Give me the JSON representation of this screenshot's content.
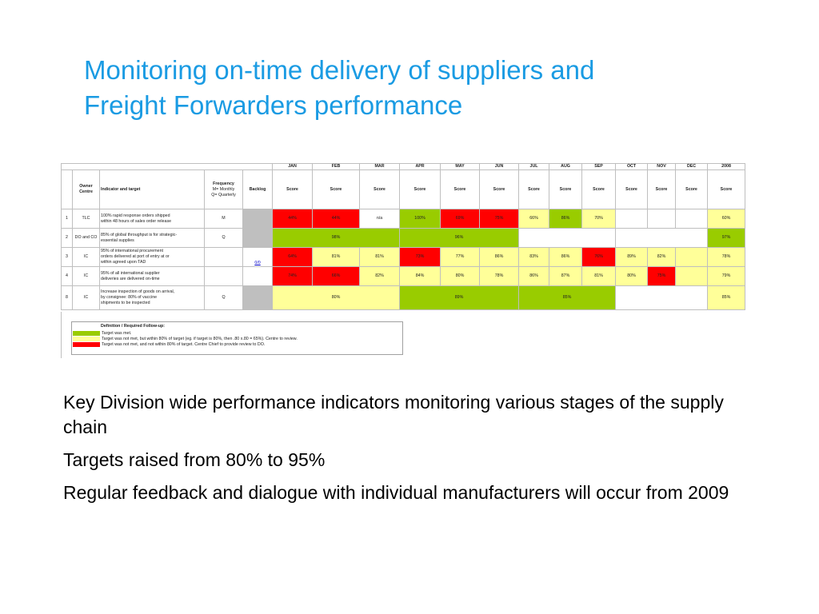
{
  "title": {
    "line1": "Monitoring on-time delivery of suppliers and",
    "line2": "Freight Forwarders performance"
  },
  "table": {
    "months": [
      "JAN",
      "FEB",
      "MAR",
      "APR",
      "MAY",
      "JUN",
      "JUL",
      "AUG",
      "SEP",
      "OCT",
      "NOV",
      "DEC",
      "2008"
    ],
    "headers": {
      "owner": "Owner Centre",
      "indicator": "Indicator and target",
      "frequency_line1": "Frequency",
      "frequency_line2": "M= Monthly",
      "frequency_line3": "Q= Quarterly",
      "backlog": "Backlog",
      "score": "Score"
    },
    "rows": [
      {
        "num": "1",
        "owner": "TLC",
        "indicator_line1": "100% rapid response orders shipped",
        "indicator_line2": "within 48 hours of sales order release",
        "indicator_line3": "",
        "freq": "M",
        "backlog": "",
        "cells": [
          {
            "text": "44%",
            "color": "red"
          },
          {
            "text": "44%",
            "color": "red"
          },
          {
            "text": "n/a",
            "color": "white"
          },
          {
            "text": "100%",
            "color": "green"
          },
          {
            "text": "69%",
            "color": "red"
          },
          {
            "text": "75%",
            "color": "red"
          },
          {
            "text": "66%",
            "color": "yellow"
          },
          {
            "text": "86%",
            "color": "green"
          },
          {
            "text": "70%",
            "color": "yellow"
          },
          {
            "text": "",
            "color": "white"
          },
          {
            "text": "",
            "color": "white"
          },
          {
            "text": "",
            "color": "white"
          }
        ],
        "total": {
          "text": "60%",
          "color": "yellow"
        }
      },
      {
        "num": "2",
        "owner": "DO and CO",
        "indicator_line1": "85% of global throughput is for strategic-",
        "indicator_line2": "essential supplies",
        "indicator_line3": "",
        "freq": "Q",
        "backlog": "",
        "spans": [
          {
            "text": "98%",
            "span": 3,
            "color": "green"
          },
          {
            "text": "96%",
            "span": 3,
            "color": "green"
          },
          {
            "text": "",
            "span": 3,
            "color": "white"
          },
          {
            "text": "",
            "span": 3,
            "color": "white"
          }
        ],
        "total": {
          "text": "97%",
          "color": "green"
        }
      },
      {
        "num": "3",
        "owner": "IC",
        "indicator_line1": "95% of international procurement",
        "indicator_line2": "orders delivered at port of entry at or",
        "indicator_line3": "within agreed upon TAD",
        "freq": "",
        "backlog": "0/0",
        "cells": [
          {
            "text": "64%",
            "color": "red"
          },
          {
            "text": "81%",
            "color": "yellow"
          },
          {
            "text": "81%",
            "color": "yellow"
          },
          {
            "text": "73%",
            "color": "red"
          },
          {
            "text": "77%",
            "color": "yellow"
          },
          {
            "text": "86%",
            "color": "yellow"
          },
          {
            "text": "83%",
            "color": "yellow"
          },
          {
            "text": "86%",
            "color": "yellow"
          },
          {
            "text": "76%",
            "color": "red"
          },
          {
            "text": "89%",
            "color": "yellow"
          },
          {
            "text": "82%",
            "color": "yellow"
          },
          {
            "text": "",
            "color": "yellow"
          }
        ],
        "total": {
          "text": "78%",
          "color": "yellow"
        }
      },
      {
        "num": "4",
        "owner": "IC",
        "indicator_line1": "95% of all international supplier",
        "indicator_line2": "deliveries are delivered on-time",
        "indicator_line3": "",
        "freq": "",
        "backlog": "",
        "cells": [
          {
            "text": "74%",
            "color": "red"
          },
          {
            "text": "66%",
            "color": "red"
          },
          {
            "text": "82%",
            "color": "yellow"
          },
          {
            "text": "84%",
            "color": "yellow"
          },
          {
            "text": "80%",
            "color": "yellow"
          },
          {
            "text": "78%",
            "color": "yellow"
          },
          {
            "text": "86%",
            "color": "yellow"
          },
          {
            "text": "87%",
            "color": "yellow"
          },
          {
            "text": "81%",
            "color": "yellow"
          },
          {
            "text": "80%",
            "color": "yellow"
          },
          {
            "text": "75%",
            "color": "red"
          },
          {
            "text": "",
            "color": "yellow"
          }
        ],
        "total": {
          "text": "79%",
          "color": "yellow"
        }
      },
      {
        "num": "8",
        "owner": "IC",
        "indicator_line1": "Increase inspection of goods on arrival,",
        "indicator_line2": "by consignee: 80% of vaccine",
        "indicator_line3": "shipments to be inspected",
        "freq": "Q",
        "backlog": "",
        "spans": [
          {
            "text": "80%",
            "span": 3,
            "color": "yellow"
          },
          {
            "text": "89%",
            "span": 3,
            "color": "green"
          },
          {
            "text": "85%",
            "span": 3,
            "color": "green"
          },
          {
            "text": "",
            "span": 3,
            "color": "white"
          }
        ],
        "total": {
          "text": "85%",
          "color": "yellow"
        }
      }
    ]
  },
  "legend": {
    "title": "Definition / Required Follow-up:",
    "items": [
      {
        "color": "green",
        "text": "Target was met."
      },
      {
        "color": "yellow",
        "text": "Target was not met, but within 80% of target (eg. if target is 80%, then .80 x.80 = 65%). Centre to review."
      },
      {
        "color": "red",
        "text": "Target was not met, and not within 80% of target. Centre Chief to provide review to DO."
      }
    ]
  },
  "bullets": {
    "b1": "Key Division wide performance indicators monitoring various stages of the supply chain",
    "b2": "Targets raised from 80% to 95%",
    "b3": "Regular feedback and dialogue with individual manufacturers will occur from 2009"
  },
  "colors": {
    "title": "#1a9be3",
    "green": "#99cc00",
    "yellow": "#ffff99",
    "red": "#ff0000",
    "white": "#ffffff",
    "gray": "#bfbfbf"
  }
}
